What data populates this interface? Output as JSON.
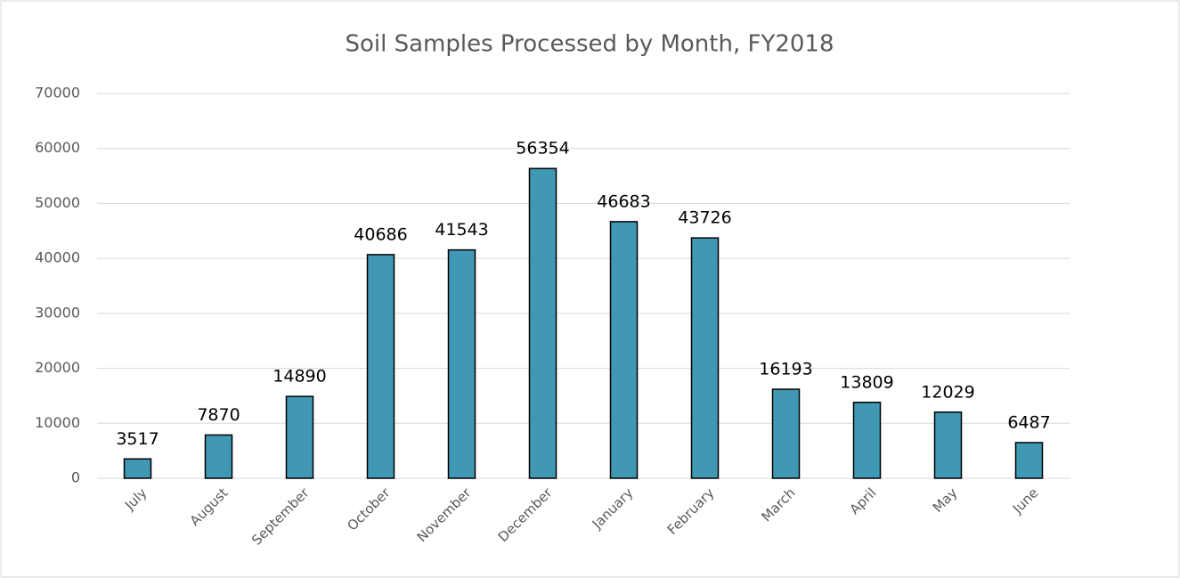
{
  "chart_data": {
    "type": "bar",
    "title": "Soil Samples Processed by Month, FY2018",
    "categories": [
      "July",
      "August",
      "September",
      "October",
      "November",
      "December",
      "January",
      "February",
      "March",
      "April",
      "May",
      "June"
    ],
    "values": [
      3517,
      7870,
      14890,
      40686,
      41543,
      56354,
      46683,
      43726,
      16193,
      13809,
      12029,
      6487
    ],
    "color": "#4198b4",
    "ylim": [
      0,
      70000
    ],
    "yticks": [
      0,
      10000,
      20000,
      30000,
      40000,
      50000,
      60000,
      70000
    ],
    "grid": true
  }
}
